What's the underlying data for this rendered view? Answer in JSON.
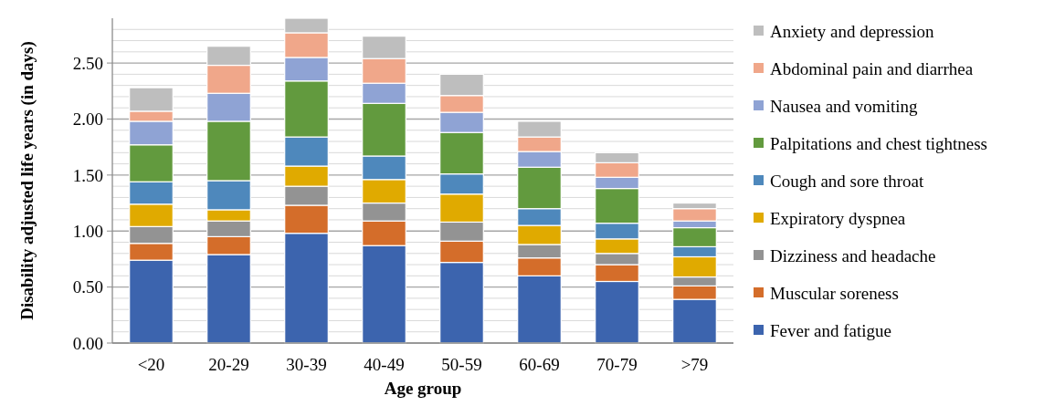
{
  "chart_data": {
    "type": "bar",
    "stacked": true,
    "xlabel": "Age group",
    "ylabel": "Disability adjusted life years (in days)",
    "categories": [
      "<20",
      "20-29",
      "30-39",
      "40-49",
      "50-59",
      "60-69",
      "70-79",
      ">79"
    ],
    "series": [
      {
        "name": "Fever and fatigue",
        "color": "#3c64ae",
        "values": [
          0.74,
          0.79,
          0.98,
          0.87,
          0.72,
          0.6,
          0.55,
          0.39
        ]
      },
      {
        "name": "Muscular soreness",
        "color": "#d46d2a",
        "values": [
          0.15,
          0.16,
          0.25,
          0.22,
          0.19,
          0.16,
          0.15,
          0.12
        ]
      },
      {
        "name": "Dizziness and headache",
        "color": "#939393",
        "values": [
          0.15,
          0.14,
          0.17,
          0.16,
          0.17,
          0.12,
          0.1,
          0.08
        ]
      },
      {
        "name": "Expiratory dyspnea",
        "color": "#e0aa00",
        "values": [
          0.2,
          0.1,
          0.18,
          0.21,
          0.25,
          0.17,
          0.13,
          0.18
        ]
      },
      {
        "name": "Cough and sore throat",
        "color": "#4e88bc",
        "values": [
          0.2,
          0.26,
          0.26,
          0.21,
          0.18,
          0.15,
          0.14,
          0.09
        ]
      },
      {
        "name": "Palpitations and chest tightness",
        "color": "#629a3e",
        "values": [
          0.33,
          0.53,
          0.5,
          0.47,
          0.37,
          0.37,
          0.31,
          0.17
        ]
      },
      {
        "name": "Nausea and vomiting",
        "color": "#8fa3d4",
        "values": [
          0.21,
          0.25,
          0.21,
          0.18,
          0.18,
          0.14,
          0.1,
          0.06
        ]
      },
      {
        "name": "Abdominal pain and diarrhea",
        "color": "#f0a78a",
        "values": [
          0.09,
          0.25,
          0.22,
          0.22,
          0.15,
          0.13,
          0.13,
          0.11
        ]
      },
      {
        "name": "Anxiety and depression",
        "color": "#bebebe",
        "values": [
          0.21,
          0.17,
          0.13,
          0.2,
          0.19,
          0.14,
          0.09,
          0.05
        ]
      }
    ],
    "ylim": [
      0,
      2.9
    ],
    "yticks": [
      {
        "value": 0,
        "label": "0.00"
      },
      {
        "value": 0.1,
        "label": null
      },
      {
        "value": 0.2,
        "label": null
      },
      {
        "value": 0.3,
        "label": null
      },
      {
        "value": 0.4,
        "label": null
      },
      {
        "value": 0.5,
        "label": "0.50"
      },
      {
        "value": 0.6,
        "label": null
      },
      {
        "value": 0.7,
        "label": null
      },
      {
        "value": 0.8,
        "label": null
      },
      {
        "value": 0.9,
        "label": null
      },
      {
        "value": 1.0,
        "label": "1.00"
      },
      {
        "value": 1.1,
        "label": null
      },
      {
        "value": 1.2,
        "label": null
      },
      {
        "value": 1.3,
        "label": null
      },
      {
        "value": 1.4,
        "label": null
      },
      {
        "value": 1.5,
        "label": "1.50"
      },
      {
        "value": 1.6,
        "label": null
      },
      {
        "value": 1.7,
        "label": null
      },
      {
        "value": 1.8,
        "label": null
      },
      {
        "value": 1.9,
        "label": null
      },
      {
        "value": 2.0,
        "label": "2.00"
      },
      {
        "value": 2.1,
        "label": null
      },
      {
        "value": 2.2,
        "label": null
      },
      {
        "value": 2.3,
        "label": null
      },
      {
        "value": 2.4,
        "label": null
      },
      {
        "value": 2.5,
        "label": "2.50"
      },
      {
        "value": 2.6,
        "label": null
      },
      {
        "value": 2.7,
        "label": null
      },
      {
        "value": 2.8,
        "label": null
      }
    ],
    "grid": "y",
    "legend": "right"
  }
}
